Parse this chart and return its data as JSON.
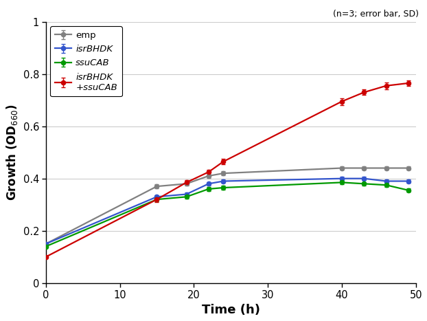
{
  "time": [
    0,
    15,
    19,
    22,
    24,
    40,
    43,
    46,
    49
  ],
  "emp": {
    "y": [
      0.15,
      0.37,
      0.38,
      0.41,
      0.42,
      0.44,
      0.44,
      0.44,
      0.44
    ],
    "yerr": [
      0.004,
      0.007,
      0.007,
      0.007,
      0.007,
      0.007,
      0.007,
      0.007,
      0.007
    ],
    "color": "#808080",
    "label": "emp"
  },
  "isrBHDK": {
    "y": [
      0.15,
      0.33,
      0.34,
      0.38,
      0.39,
      0.4,
      0.4,
      0.39,
      0.39
    ],
    "yerr": [
      0.004,
      0.007,
      0.007,
      0.007,
      0.007,
      0.007,
      0.007,
      0.007,
      0.007
    ],
    "color": "#3355cc",
    "label": "isrBHDK"
  },
  "ssuCAB": {
    "y": [
      0.14,
      0.32,
      0.33,
      0.36,
      0.365,
      0.385,
      0.38,
      0.375,
      0.355
    ],
    "yerr": [
      0.004,
      0.007,
      0.007,
      0.007,
      0.007,
      0.007,
      0.007,
      0.007,
      0.007
    ],
    "color": "#009900",
    "label": "ssuCAB"
  },
  "isrBHDK_ssuCAB": {
    "y": [
      0.1,
      0.32,
      0.385,
      0.425,
      0.465,
      0.695,
      0.73,
      0.755,
      0.765
    ],
    "yerr": [
      0.004,
      0.009,
      0.009,
      0.009,
      0.011,
      0.013,
      0.011,
      0.013,
      0.011
    ],
    "color": "#cc0000",
    "label": "isrBHDK\n+ssuCAB"
  },
  "xlabel": "Time (h)",
  "ylabel": "Growth (OD$_{660}$)",
  "annotation": "(n=3; error bar, SD)",
  "xlim": [
    0,
    50
  ],
  "ylim": [
    0,
    1.0
  ],
  "xticks": [
    0,
    10,
    20,
    30,
    40,
    50
  ],
  "yticks": [
    0,
    0.2,
    0.4,
    0.6,
    0.8,
    1.0
  ],
  "figsize": [
    6.22,
    4.67
  ],
  "dpi": 100
}
